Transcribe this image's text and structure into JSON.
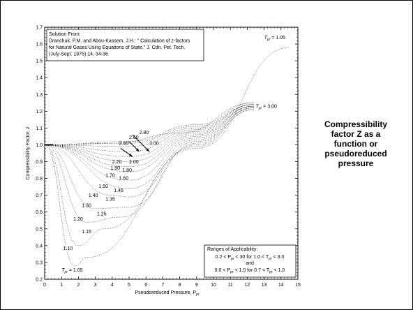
{
  "chart_data": {
    "type": "line",
    "xlabel": "Pseudoreduced Pressure, P",
    "xlabel_sub": "pr",
    "ylabel": "Compressibility Factor, z",
    "xlim": [
      0,
      15
    ],
    "ylim": [
      0.2,
      1.7
    ],
    "x_ticks": [
      0,
      1,
      2,
      3,
      4,
      5,
      6,
      7,
      8,
      9,
      10,
      11,
      12,
      13,
      14,
      15
    ],
    "y_ticks": [
      0.2,
      0.3,
      0.4,
      0.5,
      0.6,
      0.7,
      0.8,
      0.9,
      1.0,
      1.1,
      1.2,
      1.3,
      1.4,
      1.5,
      1.6,
      1.7
    ],
    "grid": false,
    "series_labels": [
      {
        "text": "2.80",
        "x": 5.6,
        "y": 1.065
      },
      {
        "text": "2.60",
        "x": 5.0,
        "y": 1.035
      },
      {
        "text": "3.00",
        "x": 6.2,
        "y": 1.0
      },
      {
        "text": "2.40",
        "x": 4.4,
        "y": 1.0
      },
      {
        "text": "2.20",
        "x": 4.0,
        "y": 0.89
      },
      {
        "text": "2.00",
        "x": 5.0,
        "y": 0.89
      },
      {
        "text": "1.90",
        "x": 3.9,
        "y": 0.852
      },
      {
        "text": "1.80",
        "x": 4.6,
        "y": 0.84
      },
      {
        "text": "1.70",
        "x": 3.6,
        "y": 0.808
      },
      {
        "text": "1.60",
        "x": 4.4,
        "y": 0.792
      },
      {
        "text": "1.50",
        "x": 3.2,
        "y": 0.745
      },
      {
        "text": "1.45",
        "x": 4.1,
        "y": 0.72
      },
      {
        "text": "1.40",
        "x": 2.6,
        "y": 0.69
      },
      {
        "text": "1.35",
        "x": 3.6,
        "y": 0.668
      },
      {
        "text": "1.30",
        "x": 2.2,
        "y": 0.63
      },
      {
        "text": "1.25",
        "x": 3.1,
        "y": 0.58
      },
      {
        "text": "1.20",
        "x": 1.7,
        "y": 0.55
      },
      {
        "text": "1.15",
        "x": 2.2,
        "y": 0.475
      },
      {
        "text": "1.10",
        "x": 1.1,
        "y": 0.375
      }
    ],
    "tpr_labels": [
      {
        "t": "T",
        "sub": "pr",
        "rest": " = 1.05",
        "x": 13.0,
        "y": 1.63
      },
      {
        "t": "T",
        "sub": "pr",
        "rest": " = 3.00",
        "x": 12.5,
        "y": 1.22
      },
      {
        "t": "T",
        "sub": "pr",
        "rest": " = 1.05",
        "x": 1.0,
        "y": 0.245
      }
    ],
    "source_box": {
      "lines": [
        "Solution From:",
        "Dranchuk, P.M. and Abou-Kassem, J.H.: \" Calculation of z-factors",
        "for Natural Gases Using Equations of State,\" J. Cdn. Pet. Tech.",
        "(July-Sept. 1975) 14, 34-36."
      ]
    },
    "ranges_box": {
      "title": "Ranges of Applicability:",
      "line1": "0.2 < P",
      "line1_sub": "pr",
      "line1_rest": " < 30  for 1.0 < T",
      "line1_sub2": "pr",
      "line1_end": " < 3.0",
      "line2": "and",
      "line3": "0.0 < P",
      "line3_sub": "pr",
      "line3_rest": " < 1.0  for 0.7 < T",
      "line3_sub2": "pr",
      "line3_end": " < 1.0"
    },
    "curves": [
      {
        "tpr": 3.0,
        "points": [
          [
            0,
            1.0
          ],
          [
            4,
            1.01
          ],
          [
            8,
            1.07
          ],
          [
            12.4,
            1.25
          ]
        ]
      },
      {
        "tpr": 2.8,
        "points": [
          [
            0,
            1.0
          ],
          [
            5,
            1.02
          ],
          [
            9,
            1.12
          ],
          [
            12.4,
            1.25
          ]
        ]
      },
      {
        "tpr": 2.6,
        "points": [
          [
            0,
            1.0
          ],
          [
            5,
            1.01
          ],
          [
            9,
            1.11
          ],
          [
            12.4,
            1.24
          ]
        ]
      },
      {
        "tpr": 2.4,
        "points": [
          [
            0,
            1.0
          ],
          [
            5,
            0.99
          ],
          [
            9,
            1.1
          ],
          [
            12.4,
            1.24
          ]
        ]
      },
      {
        "tpr": 2.2,
        "points": [
          [
            0,
            1.0
          ],
          [
            5,
            0.96
          ],
          [
            9,
            1.09
          ],
          [
            12.4,
            1.24
          ]
        ]
      },
      {
        "tpr": 2.0,
        "points": [
          [
            0,
            1.0
          ],
          [
            5,
            0.93
          ],
          [
            9,
            1.08
          ],
          [
            12.4,
            1.24
          ]
        ]
      },
      {
        "tpr": 1.9,
        "points": [
          [
            0,
            1.0
          ],
          [
            5,
            0.9
          ],
          [
            9,
            1.07
          ],
          [
            12.4,
            1.23
          ]
        ]
      },
      {
        "tpr": 1.8,
        "points": [
          [
            0,
            1.0
          ],
          [
            5,
            0.87
          ],
          [
            9,
            1.06
          ],
          [
            12.4,
            1.23
          ]
        ]
      },
      {
        "tpr": 1.7,
        "points": [
          [
            0,
            1.0
          ],
          [
            5,
            0.84
          ],
          [
            9,
            1.05
          ],
          [
            12.4,
            1.23
          ]
        ]
      },
      {
        "tpr": 1.6,
        "points": [
          [
            0,
            1.0
          ],
          [
            5,
            0.79
          ],
          [
            9,
            1.04
          ],
          [
            12.4,
            1.23
          ]
        ]
      },
      {
        "tpr": 1.5,
        "points": [
          [
            0,
            1.0
          ],
          [
            5,
            0.74
          ],
          [
            9,
            1.03
          ],
          [
            12.4,
            1.22
          ]
        ]
      },
      {
        "tpr": 1.4,
        "points": [
          [
            0,
            1.0
          ],
          [
            4,
            0.7
          ],
          [
            5,
            0.69
          ],
          [
            9,
            1.02
          ],
          [
            12.4,
            1.22
          ]
        ]
      },
      {
        "tpr": 1.3,
        "points": [
          [
            0,
            1.0
          ],
          [
            3,
            0.62
          ],
          [
            5,
            0.63
          ],
          [
            9,
            1.01
          ],
          [
            12.4,
            1.22
          ]
        ]
      },
      {
        "tpr": 1.2,
        "points": [
          [
            0,
            1.0
          ],
          [
            2.5,
            0.54
          ],
          [
            4.5,
            0.57
          ],
          [
            9,
            1.0
          ],
          [
            12.4,
            1.21
          ]
        ]
      },
      {
        "tpr": 1.1,
        "points": [
          [
            0,
            1.0
          ],
          [
            2,
            0.4
          ],
          [
            3.5,
            0.5
          ],
          [
            9,
            0.99
          ],
          [
            12.4,
            1.21
          ]
        ]
      },
      {
        "tpr": 1.05,
        "points": [
          [
            0,
            1.0
          ],
          [
            1.8,
            0.28
          ],
          [
            2.5,
            0.33
          ],
          [
            9,
            0.98
          ],
          [
            14.5,
            1.58
          ]
        ]
      }
    ]
  },
  "caption": {
    "line1": "Compressibility",
    "line2": "factor Z as a",
    "line3": "function or",
    "line4": "pseudoreduced",
    "line5": "pressure"
  }
}
